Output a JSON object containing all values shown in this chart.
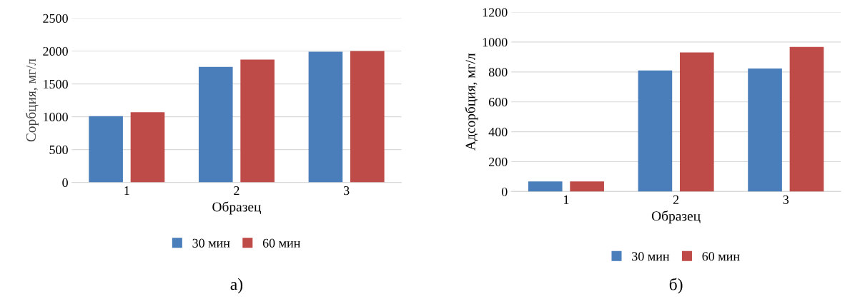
{
  "chart_data": [
    {
      "type": "bar",
      "xlabel": "Образец",
      "ylabel": "Сорбция, мг/л",
      "categories": [
        "1",
        "2",
        "3"
      ],
      "series": [
        {
          "name": "30 мин",
          "color": "#4a7ebb",
          "values": [
            1010,
            1760,
            1990
          ]
        },
        {
          "name": "60 мин",
          "color": "#be4b48",
          "values": [
            1070,
            1870,
            2000
          ]
        }
      ],
      "ylim": [
        0,
        2500
      ],
      "yticks": [
        0,
        500,
        1000,
        1500,
        2000,
        2500
      ],
      "grid": "y",
      "legend": "bottom",
      "annotations": [
        "а)"
      ]
    },
    {
      "type": "bar",
      "xlabel": "Образец",
      "ylabel": "Адсорбция, мг/л",
      "categories": [
        "1",
        "2",
        "3"
      ],
      "series": [
        {
          "name": "30 мин",
          "color": "#4a7ebb",
          "values": [
            67,
            810,
            823
          ]
        },
        {
          "name": "60 мин",
          "color": "#be4b48",
          "values": [
            67,
            930,
            967
          ]
        }
      ],
      "ylim": [
        0,
        1200
      ],
      "yticks": [
        0,
        200,
        400,
        600,
        800,
        1000,
        1200
      ],
      "grid": "y",
      "legend": "bottom",
      "annotations": [
        "б)"
      ]
    }
  ]
}
